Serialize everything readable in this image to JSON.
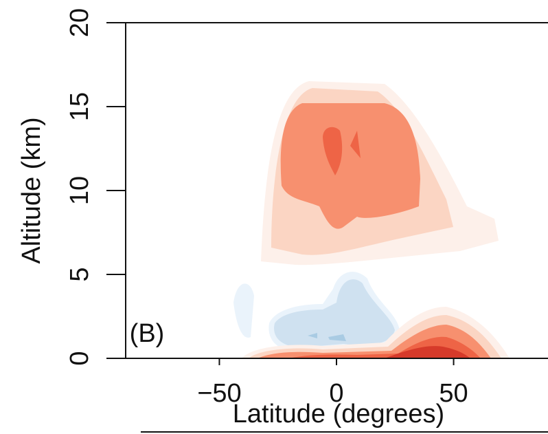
{
  "chart_data": {
    "type": "contour",
    "xlabel": "Latitude (degrees)",
    "ylabel": "Altitude (km)",
    "annotation": "(B)",
    "xlim": [
      -90,
      90
    ],
    "ylim": [
      0,
      20
    ],
    "xticks": [
      {
        "value": -50,
        "label": "−50"
      },
      0,
      50
    ],
    "yticks": [
      0,
      5,
      10,
      15,
      20
    ]
  }
}
